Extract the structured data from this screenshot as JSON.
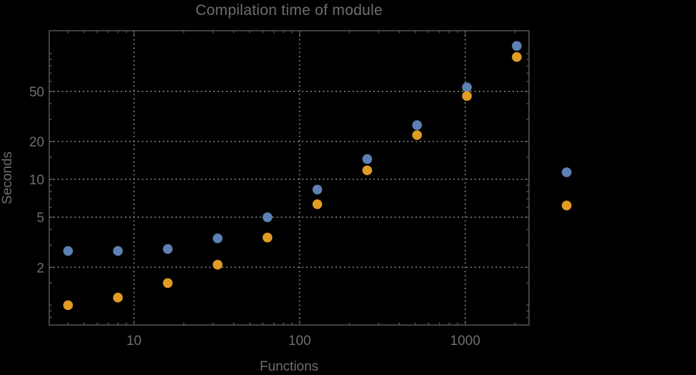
{
  "window": {
    "background": "#000000"
  },
  "chart_data": {
    "type": "scatter",
    "title": "Compilation time of module",
    "xlabel": "Functions",
    "ylabel": "Seconds",
    "x_scale": "log",
    "y_scale": "log",
    "xlim": [
      3.08,
      2426
    ],
    "ylim": [
      0.696,
      152
    ],
    "grid": "dotted",
    "plot_range_clipping": false,
    "legend": "none",
    "x_gridlines": [
      10,
      100,
      1000
    ],
    "y_gridlines": [
      2,
      5,
      10,
      20,
      50
    ],
    "x_major_ticks": [
      10,
      100,
      1000
    ],
    "x_tick_labels": [
      "10",
      "100",
      "1000"
    ],
    "x_minor_ticks": [
      4,
      5,
      6,
      7,
      8,
      9,
      20,
      30,
      40,
      50,
      60,
      70,
      80,
      90,
      200,
      300,
      400,
      500,
      600,
      700,
      800,
      900,
      2000
    ],
    "y_major_ticks": [
      2,
      5,
      10,
      20,
      50
    ],
    "y_tick_labels": [
      "2",
      "5",
      "10",
      "20",
      "50"
    ],
    "y_minor_ticks": [
      0.8,
      0.9,
      1,
      1.5,
      3,
      4,
      6,
      7,
      8,
      9,
      15,
      30,
      40,
      60,
      70,
      80,
      90,
      100
    ],
    "series": [
      {
        "name": "blue",
        "color": "#5e81b5",
        "marker": "circle",
        "x": [
          4,
          8,
          16,
          32,
          64,
          128,
          256,
          512,
          1024,
          2048,
          4096
        ],
        "y": [
          2.7,
          2.7,
          2.8,
          3.4,
          5.0,
          8.3,
          14.5,
          27,
          54,
          115,
          11.4
        ]
      },
      {
        "name": "orange",
        "color": "#e09c24",
        "marker": "circle",
        "x": [
          4,
          8,
          16,
          32,
          64,
          128,
          256,
          512,
          1024,
          2048,
          4096
        ],
        "y": [
          1.0,
          1.15,
          1.5,
          2.1,
          3.45,
          6.35,
          11.8,
          22.5,
          46,
          94,
          6.2
        ]
      }
    ]
  }
}
